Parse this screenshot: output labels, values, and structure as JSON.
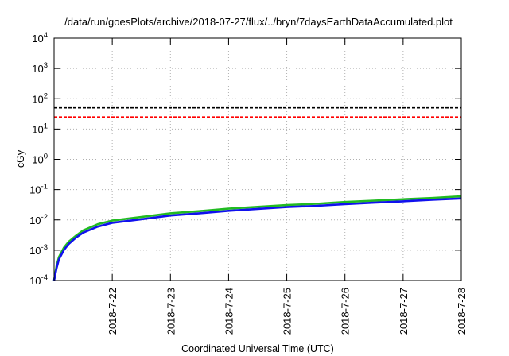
{
  "chart_data": {
    "type": "line",
    "title": "/data/run/goesPlots/archive/2018-07-27/flux/../bryn/7daysEarthDataAccumulated.plot",
    "xlabel": "Coordinated Universal Time (UTC)",
    "ylabel": "cGy",
    "x_range": [
      "2018-07-21",
      "2018-07-28"
    ],
    "x_ticks": [
      "2018-7-22",
      "2018-7-23",
      "2018-7-24",
      "2018-7-25",
      "2018-7-26",
      "2018-7-27",
      "2018-7-28"
    ],
    "yscale": "log",
    "ylim": [
      0.0001,
      10000
    ],
    "y_ticks": [
      {
        "base": "10",
        "exp": "-4"
      },
      {
        "base": "10",
        "exp": "-3"
      },
      {
        "base": "10",
        "exp": "-2"
      },
      {
        "base": "10",
        "exp": "-1"
      },
      {
        "base": "10",
        "exp": "0"
      },
      {
        "base": "10",
        "exp": "1"
      },
      {
        "base": "10",
        "exp": "2"
      },
      {
        "base": "10",
        "exp": "3"
      },
      {
        "base": "10",
        "exp": "4"
      }
    ],
    "grid": true,
    "reference_lines": [
      {
        "y": 50,
        "color": "#000000",
        "style": "dashed"
      },
      {
        "y": 25,
        "color": "#ff0000",
        "style": "dashed"
      }
    ],
    "series": [
      {
        "color": "#22bb22",
        "x": [
          "2018-07-21 00:00",
          "2018-07-21 01:00",
          "2018-07-21 02:00",
          "2018-07-21 04:00",
          "2018-07-21 06:00",
          "2018-07-21 09:00",
          "2018-07-21 12:00",
          "2018-07-21 18:00",
          "2018-07-22 00:00",
          "2018-07-22 12:00",
          "2018-07-23 00:00",
          "2018-07-23 12:00",
          "2018-07-24 00:00",
          "2018-07-24 12:00",
          "2018-07-25 00:00",
          "2018-07-25 12:00",
          "2018-07-26 00:00",
          "2018-07-26 12:00",
          "2018-07-27 00:00",
          "2018-07-27 12:00",
          "2018-07-28 00:00"
        ],
        "values": [
          0.0001,
          0.0003,
          0.0006,
          0.0012,
          0.0019,
          0.003,
          0.0045,
          0.0072,
          0.0095,
          0.0125,
          0.0165,
          0.0195,
          0.0235,
          0.027,
          0.031,
          0.034,
          0.039,
          0.043,
          0.048,
          0.053,
          0.06
        ]
      },
      {
        "color": "#1111ee",
        "x": [
          "2018-07-21 00:00",
          "2018-07-21 01:00",
          "2018-07-21 02:00",
          "2018-07-21 04:00",
          "2018-07-21 06:00",
          "2018-07-21 09:00",
          "2018-07-21 12:00",
          "2018-07-21 18:00",
          "2018-07-22 00:00",
          "2018-07-22 12:00",
          "2018-07-23 00:00",
          "2018-07-23 12:00",
          "2018-07-24 00:00",
          "2018-07-24 12:00",
          "2018-07-25 00:00",
          "2018-07-25 12:00",
          "2018-07-26 00:00",
          "2018-07-26 12:00",
          "2018-07-27 00:00",
          "2018-07-27 12:00",
          "2018-07-28 00:00"
        ],
        "values": [
          0.0001,
          0.00025,
          0.0005,
          0.001,
          0.0016,
          0.0026,
          0.0038,
          0.006,
          0.008,
          0.0105,
          0.014,
          0.0165,
          0.02,
          0.023,
          0.0265,
          0.029,
          0.033,
          0.037,
          0.041,
          0.046,
          0.051
        ]
      }
    ]
  }
}
